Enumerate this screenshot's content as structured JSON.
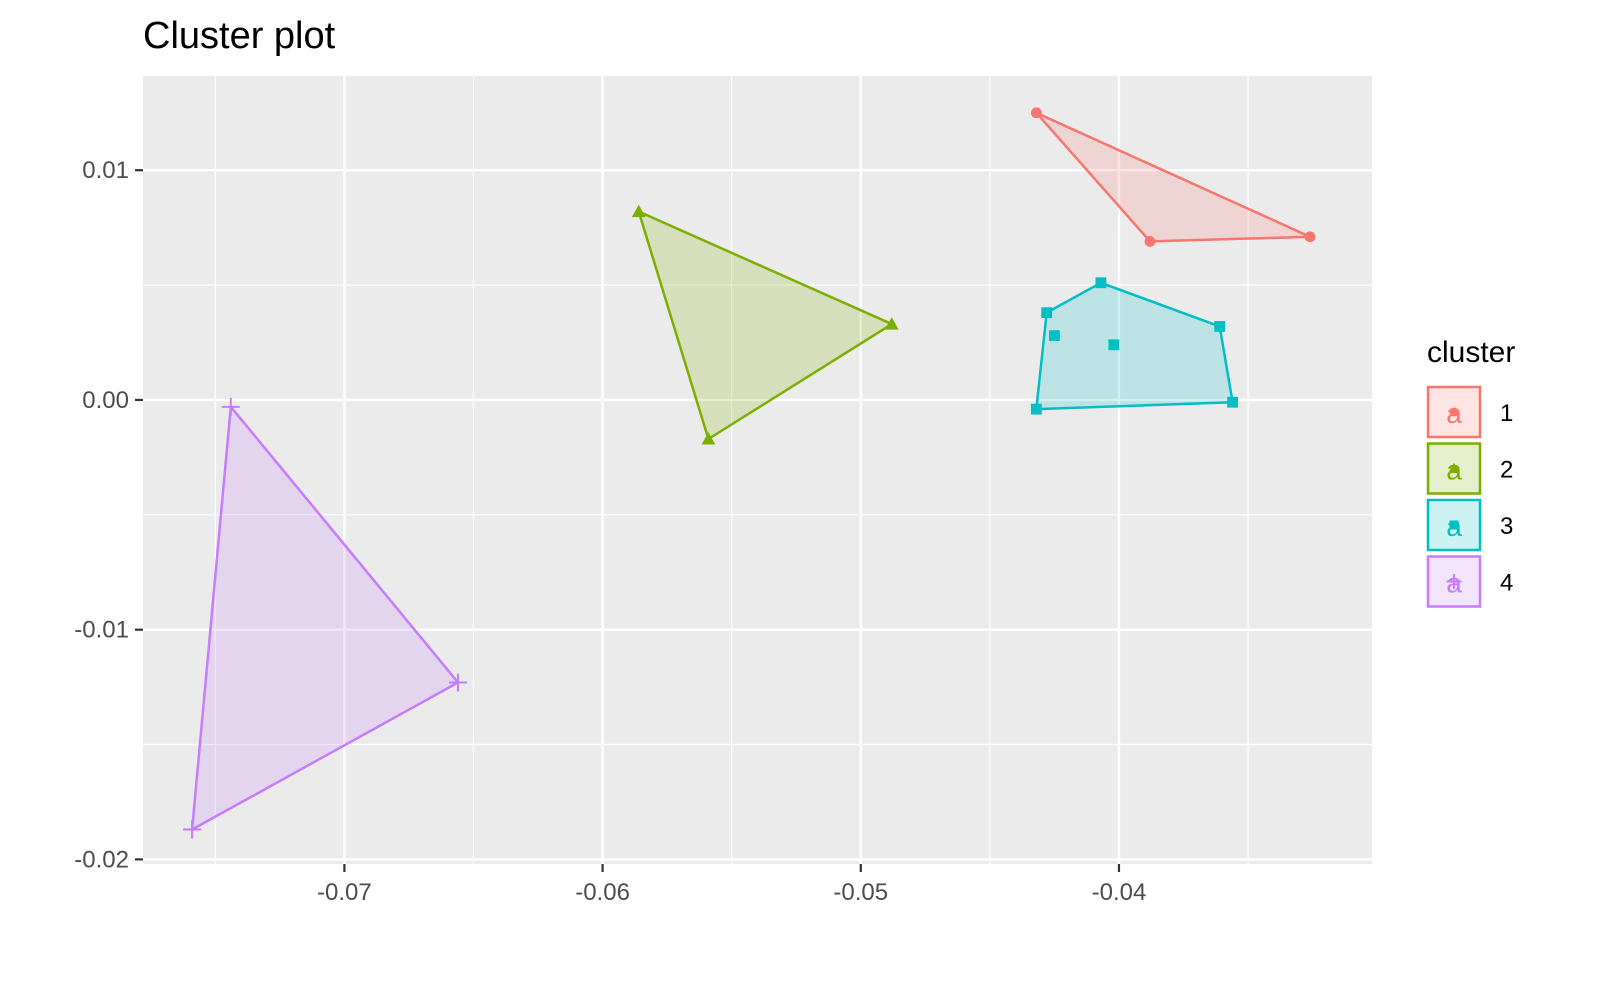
{
  "chart_data": {
    "type": "scatter",
    "title": "Cluster plot",
    "xlabel": "",
    "ylabel": "",
    "xlim": [
      -0.0778,
      -0.0302
    ],
    "ylim": [
      -0.0202,
      0.0141
    ],
    "x_ticks": [
      -0.07,
      -0.06,
      -0.05,
      -0.04
    ],
    "x_tick_labels": [
      "-0.07",
      "-0.06",
      "-0.05",
      "-0.04"
    ],
    "y_ticks": [
      -0.02,
      -0.01,
      0.0,
      0.01
    ],
    "y_tick_labels": [
      "-0.02",
      "-0.01",
      "0.00",
      "0.01"
    ],
    "grid": true,
    "legend": {
      "title": "cluster",
      "position": "right",
      "glyph": "a"
    },
    "series": [
      {
        "name": "1",
        "color": "#F8766D",
        "marker": "circle",
        "points": [
          [
            -0.0432,
            0.0125
          ],
          [
            -0.0388,
            0.0069
          ],
          [
            -0.0326,
            0.0071
          ]
        ],
        "hull": [
          [
            -0.0432,
            0.0125
          ],
          [
            -0.0326,
            0.0071
          ],
          [
            -0.0388,
            0.0069
          ]
        ]
      },
      {
        "name": "2",
        "color": "#7CAE00",
        "marker": "triangle",
        "points": [
          [
            -0.0586,
            0.0082
          ],
          [
            -0.0488,
            0.0033
          ],
          [
            -0.0559,
            -0.0017
          ]
        ],
        "hull": [
          [
            -0.0586,
            0.0082
          ],
          [
            -0.0488,
            0.0033
          ],
          [
            -0.0559,
            -0.0017
          ]
        ]
      },
      {
        "name": "3",
        "color": "#00BFC4",
        "marker": "square",
        "points": [
          [
            -0.0428,
            0.0038
          ],
          [
            -0.0425,
            0.0028
          ],
          [
            -0.0407,
            0.0051
          ],
          [
            -0.0402,
            0.0024
          ],
          [
            -0.0361,
            0.0032
          ],
          [
            -0.0356,
            -0.0001
          ],
          [
            -0.0432,
            -0.0004
          ]
        ],
        "hull": [
          [
            -0.0428,
            0.0038
          ],
          [
            -0.0407,
            0.0051
          ],
          [
            -0.0361,
            0.0032
          ],
          [
            -0.0356,
            -0.0001
          ],
          [
            -0.0432,
            -0.0004
          ]
        ]
      },
      {
        "name": "4",
        "color": "#C77CFF",
        "marker": "plus",
        "points": [
          [
            -0.0744,
            -0.0003
          ],
          [
            -0.0656,
            -0.0123
          ],
          [
            -0.0759,
            -0.0187
          ]
        ],
        "hull": [
          [
            -0.0744,
            -0.0003
          ],
          [
            -0.0656,
            -0.0123
          ],
          [
            -0.0759,
            -0.0187
          ]
        ]
      }
    ]
  }
}
